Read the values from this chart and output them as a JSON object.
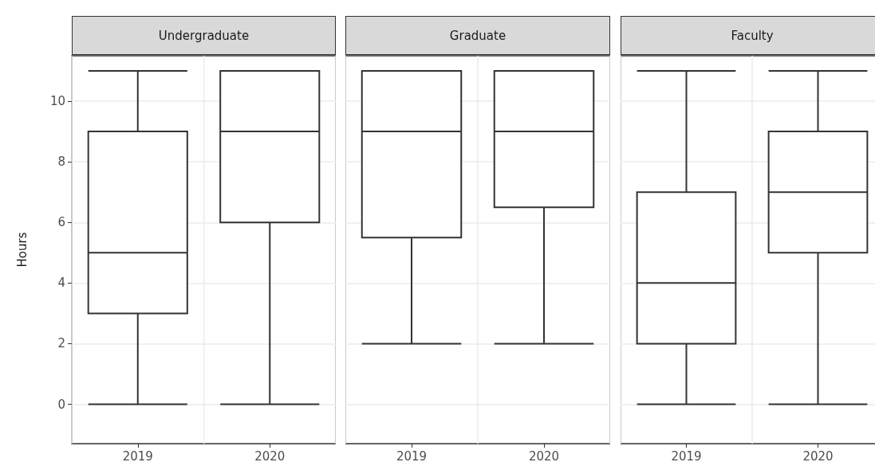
{
  "chart_data": [
    {
      "type": "box",
      "title": "Undergraduate",
      "ylabel": "Hours",
      "categories": [
        "2019",
        "2020"
      ],
      "boxes": [
        {
          "low": 0,
          "q1": 3,
          "median": 5,
          "q3": 9,
          "high": 11
        },
        {
          "low": 0,
          "q1": 6,
          "median": 9,
          "q3": 11,
          "high": 11
        }
      ],
      "ylim": [
        -1.3,
        11.5
      ],
      "yticks": [
        0,
        2,
        4,
        6,
        8,
        10
      ],
      "grid": true
    },
    {
      "type": "box",
      "title": "Graduate",
      "categories": [
        "2019",
        "2020"
      ],
      "boxes": [
        {
          "low": 2,
          "q1": 5.5,
          "median": 9,
          "q3": 11,
          "high": 11
        },
        {
          "low": 2,
          "q1": 6.5,
          "median": 9,
          "q3": 11,
          "high": 11
        }
      ],
      "ylim": [
        -1.3,
        11.5
      ],
      "yticks": [
        0,
        2,
        4,
        6,
        8,
        10
      ],
      "grid": true,
      "tick_labels": "x"
    },
    {
      "type": "box",
      "title": "Faculty",
      "categories": [
        "2019",
        "2020"
      ],
      "boxes": [
        {
          "low": 0,
          "q1": 2,
          "median": 4,
          "q3": 7,
          "high": 11
        },
        {
          "low": 0,
          "q1": 5,
          "median": 7,
          "q3": 9,
          "high": 11
        }
      ],
      "ylim": [
        -1.3,
        11.5
      ],
      "yticks": [
        0,
        2,
        4,
        6,
        8,
        10
      ],
      "grid": true,
      "tick_labels": "x"
    }
  ]
}
